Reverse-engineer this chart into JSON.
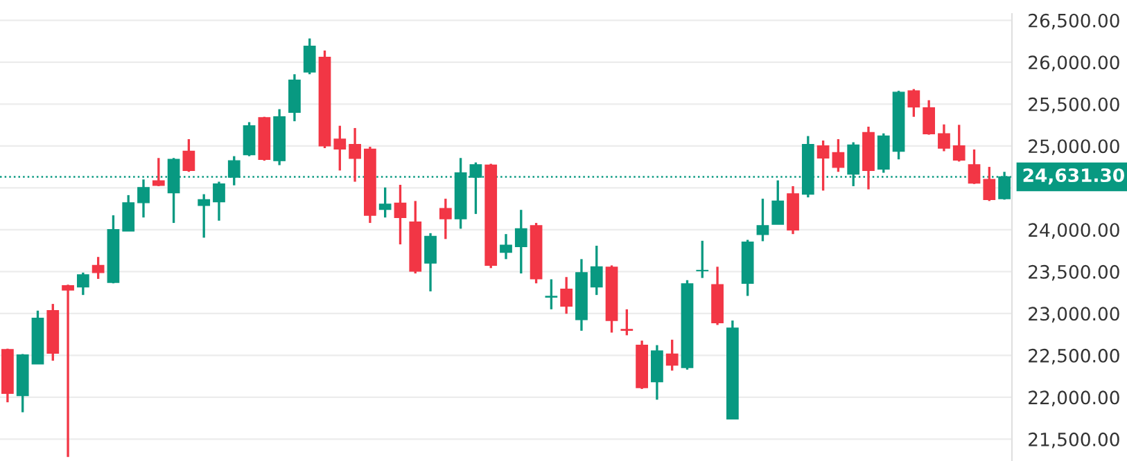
{
  "chart_data": {
    "type": "candlestick",
    "categories": [
      null,
      null,
      null,
      null,
      null,
      null,
      null,
      null,
      null,
      null,
      null,
      null,
      null,
      null,
      null,
      null,
      null,
      null,
      null,
      null,
      null,
      null,
      null,
      null,
      null,
      null,
      null,
      null,
      null,
      null,
      null,
      null,
      null,
      null,
      null,
      null,
      null,
      null,
      null,
      null,
      null,
      null,
      null,
      null,
      null,
      null,
      null,
      null,
      null,
      null,
      null,
      null,
      null,
      null,
      null,
      null,
      null,
      null,
      null,
      null,
      null,
      null,
      null,
      null,
      null,
      null,
      null
    ],
    "ohlc": [
      [
        22569,
        22580,
        21940,
        22046
      ],
      [
        22019,
        22516,
        21821,
        22505
      ],
      [
        22398,
        23034,
        22398,
        22943
      ],
      [
        23034,
        23114,
        22436,
        22526
      ],
      [
        23333,
        23344,
        21287,
        23280
      ],
      [
        23317,
        23488,
        23221,
        23462
      ],
      [
        23574,
        23675,
        23413,
        23488
      ],
      [
        23371,
        24172,
        23360,
        24001
      ],
      [
        23985,
        24413,
        23985,
        24322
      ],
      [
        24322,
        24600,
        24146,
        24504
      ],
      [
        24584,
        24856,
        24520,
        24530
      ],
      [
        24440,
        24856,
        24081,
        24840
      ],
      [
        24937,
        25081,
        24691,
        24707
      ],
      [
        24290,
        24424,
        23905,
        24359
      ],
      [
        24333,
        24573,
        24108,
        24546
      ],
      [
        24627,
        24878,
        24530,
        24824
      ],
      [
        24894,
        25284,
        24878,
        25241
      ],
      [
        25337,
        25348,
        24824,
        24840
      ],
      [
        24824,
        25439,
        24771,
        25348
      ],
      [
        25401,
        25856,
        25295,
        25786
      ],
      [
        25882,
        26283,
        25856,
        26192
      ],
      [
        26059,
        26139,
        24974,
        25001
      ],
      [
        25081,
        25241,
        24707,
        24963
      ],
      [
        25017,
        25214,
        24573,
        24851
      ],
      [
        24963,
        24990,
        24081,
        24172
      ],
      [
        24242,
        24504,
        24146,
        24306
      ],
      [
        24317,
        24536,
        23825,
        24146
      ],
      [
        24092,
        24343,
        23478,
        23505
      ],
      [
        23601,
        23959,
        23264,
        23921
      ],
      [
        24253,
        24370,
        23889,
        24130
      ],
      [
        24130,
        24856,
        24012,
        24680
      ],
      [
        24627,
        24803,
        24188,
        24776
      ],
      [
        24771,
        24787,
        23542,
        23574
      ],
      [
        23729,
        23948,
        23649,
        23815
      ],
      [
        23798,
        24237,
        23478,
        24012
      ],
      [
        24049,
        24081,
        23360,
        23413
      ],
      [
        23195,
        23408,
        23050,
        23205
      ],
      [
        23291,
        23435,
        22997,
        23088
      ],
      [
        22927,
        23649,
        22794,
        23488
      ],
      [
        23317,
        23809,
        23221,
        23558
      ],
      [
        23553,
        23574,
        22772,
        22916
      ],
      [
        22810,
        23050,
        22740,
        22799
      ],
      [
        22622,
        22676,
        22099,
        22115
      ],
      [
        22184,
        22622,
        21971,
        22553
      ],
      [
        22516,
        22687,
        22318,
        22382
      ],
      [
        22355,
        23397,
        22329,
        23355
      ],
      [
        23510,
        23868,
        23424,
        23515
      ],
      [
        23344,
        23558,
        22863,
        22890
      ],
      [
        21741,
        22916,
        21741,
        22826
      ],
      [
        23360,
        23879,
        23210,
        23852
      ],
      [
        23943,
        24370,
        23863,
        24049
      ],
      [
        24065,
        24589,
        24065,
        24343
      ],
      [
        24429,
        24520,
        23948,
        23996
      ],
      [
        24424,
        25118,
        24386,
        25017
      ],
      [
        25001,
        25065,
        24467,
        24856
      ],
      [
        24921,
        25081,
        24691,
        24744
      ],
      [
        24664,
        25044,
        24520,
        25012
      ],
      [
        25161,
        25230,
        24482,
        24707
      ],
      [
        24723,
        25150,
        24680,
        25118
      ],
      [
        24937,
        25658,
        24840,
        25642
      ],
      [
        25658,
        25679,
        25348,
        25466
      ],
      [
        25455,
        25546,
        25134,
        25145
      ],
      [
        25145,
        25257,
        24937,
        24974
      ],
      [
        25001,
        25252,
        24814,
        24830
      ],
      [
        24776,
        24958,
        24546,
        24557
      ],
      [
        24600,
        24750,
        24343,
        24359
      ],
      [
        24370,
        24691,
        24359,
        24631.3
      ]
    ],
    "colors": [
      "#f23645",
      "#089981",
      "#089981",
      "#f23645",
      "#f23645",
      "#089981",
      "#f23645",
      "#089981",
      "#089981",
      "#089981",
      "#f23645",
      "#089981",
      "#f23645",
      "#089981",
      "#089981",
      "#089981",
      "#089981",
      "#f23645",
      "#089981",
      "#089981",
      "#089981",
      "#f23645",
      "#f23645",
      "#f23645",
      "#f23645",
      "#089981",
      "#f23645",
      "#f23645",
      "#089981",
      "#f23645",
      "#089981",
      "#089981",
      "#f23645",
      "#089981",
      "#089981",
      "#f23645",
      "#089981",
      "#f23645",
      "#089981",
      "#089981",
      "#f23645",
      "#f23645",
      "#f23645",
      "#089981",
      "#f23645",
      "#089981",
      "#089981",
      "#f23645",
      "#089981",
      "#089981",
      "#089981",
      "#089981",
      "#f23645",
      "#089981",
      "#f23645",
      "#f23645",
      "#089981",
      "#f23645",
      "#089981",
      "#089981",
      "#f23645",
      "#f23645",
      "#f23645",
      "#f23645",
      "#f23645",
      "#f23645",
      "#089981"
    ],
    "ylim": [
      21239,
      26577
    ],
    "yticks": [
      {
        "value": 21500,
        "label": "21,500.00"
      },
      {
        "value": 22000,
        "label": "22,000.00"
      },
      {
        "value": 22500,
        "label": "22,500.00"
      },
      {
        "value": 23000,
        "label": "23,000.00"
      },
      {
        "value": 23500,
        "label": "23,500.00"
      },
      {
        "value": 24000,
        "label": "24,000.00"
      },
      {
        "value": 24500,
        "label": null
      },
      {
        "value": 25000,
        "label": "25,000.00"
      },
      {
        "value": 25500,
        "label": "25,500.00"
      },
      {
        "value": 26000,
        "label": "26,000.00"
      },
      {
        "value": 26500,
        "label": "26,500.00"
      }
    ],
    "grid": "y",
    "ref_lines": [
      {
        "axis": "y",
        "value": 24631.3,
        "label": "24,631.30",
        "color": "#089981",
        "line_style": "dotted"
      }
    ]
  }
}
